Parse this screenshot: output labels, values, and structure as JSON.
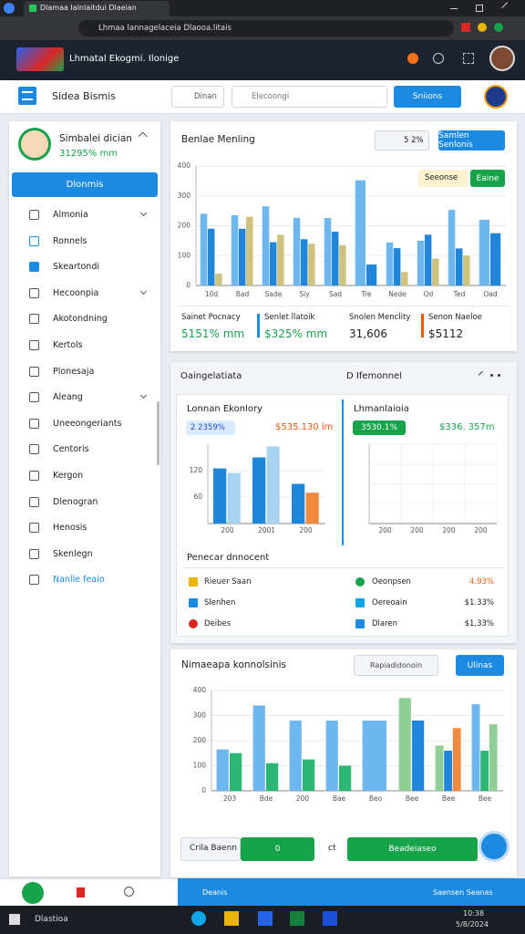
{
  "browser": {
    "tab_title": "Dlamaa Ialnlaitdui Dlaeian",
    "url": "Lhmaa lannagelaceia Dlaooa.litais"
  },
  "app_header": {
    "title": "Lhmatal Ekogmi. Ilonige"
  },
  "toolbar": {
    "title": "Sidea Bismis",
    "filter": "Dinan",
    "search_placeholder": "Elecoongi",
    "button": "Sniions"
  },
  "sidebar": {
    "profile_name": "Simbalei dician",
    "profile_stat": "31295% mm",
    "button": "Dlonmis",
    "menu": [
      "Almonia",
      "Ronnels",
      "Skeartondi",
      "Hecoonpia",
      "Akotondning",
      "Kertols",
      "Plonesaja",
      "Aleang",
      "Uneeongeriants",
      "Centoris",
      "Kergon",
      "Dlenogran",
      "Henosis",
      "Skenlegn",
      "Nanlle feaio"
    ]
  },
  "overview": {
    "range": "5 2%",
    "button": "Samlen Senlonis",
    "chips": [
      "Seeonse",
      "Eaine"
    ],
    "stats": [
      {
        "label": "Sainet Pocnacy",
        "value": "5151% mm"
      },
      {
        "label": "Senlet llatoik",
        "value": "$325% mm"
      },
      {
        "label": "Snolen Menclity",
        "value": "31,606"
      },
      {
        "label": "Senon Naeloe",
        "value": "$5112"
      }
    ]
  },
  "detail": {
    "title": "Oaingelatiata",
    "subtitle": "D Ifemonnel",
    "cards": [
      {
        "badge": "2 2359%",
        "amount": "$535.130 lm"
      },
      {
        "badge": "3530.1%",
        "amount": "$336. 357m"
      }
    ],
    "list_title": "Penecar dnnocent",
    "list_left": [
      "Rieuer Saan",
      "Slenhen",
      "Deibes"
    ],
    "list_right": [
      {
        "label": "Oeonpsen",
        "value": "4.93%"
      },
      {
        "label": "Oereoain",
        "value": "$1.33%"
      },
      {
        "label": "Dlaren",
        "value": "$1,33%"
      }
    ]
  },
  "analysis": {
    "search": "Rapiadidonoin",
    "button": "Ulinas",
    "footer_label": "Crila Baenn",
    "footer_button_1": "0",
    "footer_mark": "ct",
    "footer_button_2": "Beadeiaseo"
  },
  "bottom_bar": {
    "left": "Deanis",
    "right": "Saensen Seanas"
  },
  "taskbar": {
    "search": "Dlastioa",
    "time": "10:38",
    "date": "5/8/2024"
  },
  "chart_data": [
    {
      "type": "bar",
      "title": "Benlae Menling",
      "categories": [
        "10d",
        "Bad",
        "Sade",
        "Siy",
        "Sad",
        "Tre",
        "Nede",
        "Od",
        "Ted",
        "Oad"
      ],
      "series": [
        {
          "color": "#6db6ee",
          "values": [
            240,
            235,
            265,
            226,
            226,
            352,
            144,
            150,
            253,
            220
          ]
        },
        {
          "color": "#1f86da",
          "values": [
            190,
            190,
            145,
            155,
            180,
            70,
            125,
            170,
            124,
            175
          ]
        },
        {
          "color": "#cfc27e",
          "values": [
            40,
            230,
            170,
            140,
            135,
            null,
            45,
            90,
            100,
            null
          ]
        }
      ],
      "ylim": [
        0,
        400
      ],
      "yticks": [
        0,
        100,
        200,
        300,
        400
      ],
      "grid": true
    },
    {
      "type": "bar",
      "title": "Lonnan Ekonlory",
      "categories": [
        "200",
        "2001",
        "200"
      ],
      "series": [
        {
          "color": "#1f86da",
          "values": [
            125,
            150,
            90
          ]
        },
        {
          "color": "#a8d4f2",
          "values": [
            115,
            175,
            null
          ]
        },
        {
          "color": "#f08a3c",
          "values": [
            null,
            null,
            70
          ]
        }
      ],
      "ylim": [
        0,
        180
      ],
      "yticks": [
        60,
        120
      ],
      "grid": true
    },
    {
      "type": "bar",
      "title": "Lhmanlaioia",
      "categories": [
        "200",
        "200",
        "200",
        "200"
      ],
      "series": [],
      "grid": true
    },
    {
      "type": "bar",
      "title": "Nimaeapa konnolsinis",
      "categories": [
        "203",
        "Bde",
        "200",
        "Bae",
        "Beo",
        "Bee",
        "Bee",
        "Bee"
      ],
      "series": [
        {
          "color": "#6db6ee",
          "values": [
            165,
            340,
            280,
            280,
            280,
            null,
            null,
            345
          ]
        },
        {
          "color": "#2bb673",
          "values": [
            150,
            110,
            125,
            100,
            null,
            null,
            null,
            160
          ]
        },
        {
          "color": "#8fcf95",
          "values": [
            null,
            null,
            null,
            null,
            null,
            370,
            180,
            265
          ]
        },
        {
          "color": "#1f86da",
          "values": [
            null,
            null,
            null,
            null,
            null,
            280,
            160,
            null
          ]
        },
        {
          "color": "#f08a3c",
          "values": [
            null,
            null,
            null,
            null,
            null,
            null,
            250,
            null
          ]
        }
      ],
      "ylim": [
        0,
        400
      ],
      "yticks": [
        0,
        100,
        200,
        300,
        400
      ],
      "grid": true
    }
  ]
}
